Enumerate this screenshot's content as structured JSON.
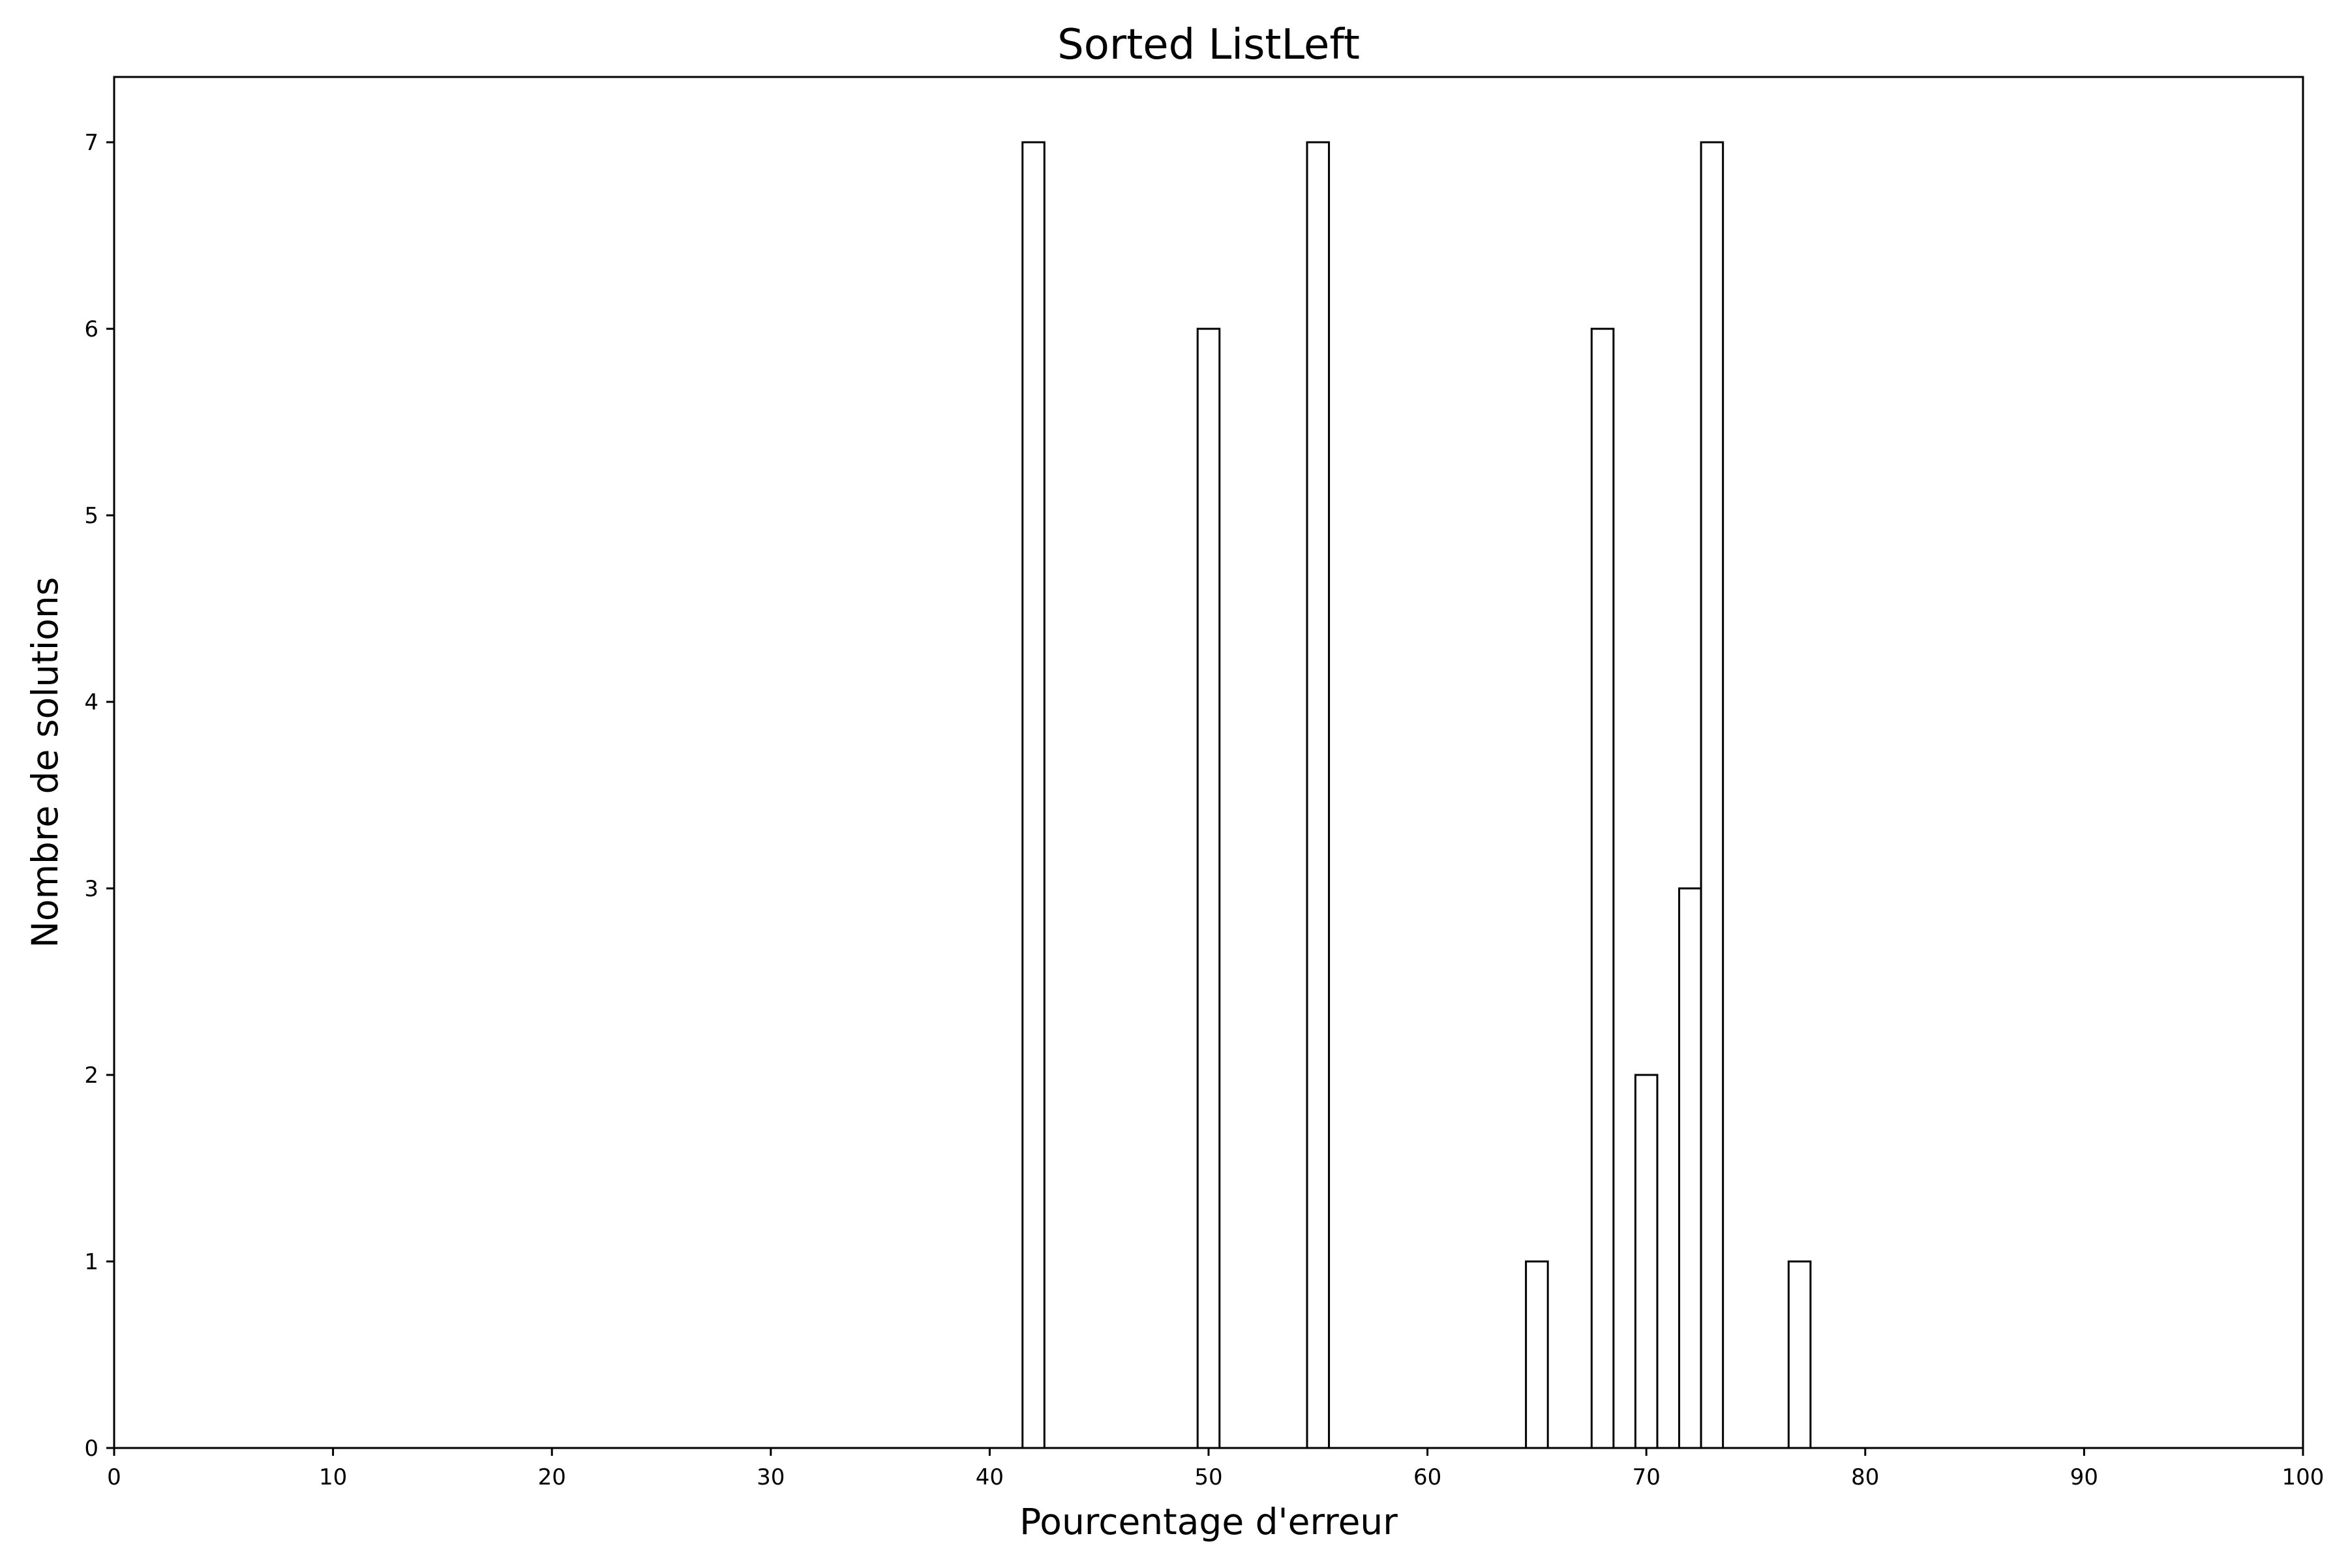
{
  "chart_data": {
    "type": "bar",
    "title": "Sorted ListLeft",
    "xlabel": "Pourcentage d'erreur",
    "ylabel": "Nombre de solutions",
    "xlim": [
      0,
      100
    ],
    "ylim": [
      0,
      7.35
    ],
    "x_ticks": [
      0,
      10,
      20,
      30,
      40,
      50,
      60,
      70,
      80,
      90,
      100
    ],
    "y_ticks": [
      0,
      1,
      2,
      3,
      4,
      5,
      6,
      7
    ],
    "bar_width": 1,
    "bar_fill": "#ffffff",
    "bar_edge": "#000000",
    "grid": false,
    "bars": [
      {
        "x": 42,
        "value": 7
      },
      {
        "x": 50,
        "value": 6
      },
      {
        "x": 55,
        "value": 7
      },
      {
        "x": 65,
        "value": 1
      },
      {
        "x": 68,
        "value": 6
      },
      {
        "x": 70,
        "value": 2
      },
      {
        "x": 72,
        "value": 3
      },
      {
        "x": 73,
        "value": 7
      },
      {
        "x": 77,
        "value": 1
      }
    ]
  }
}
